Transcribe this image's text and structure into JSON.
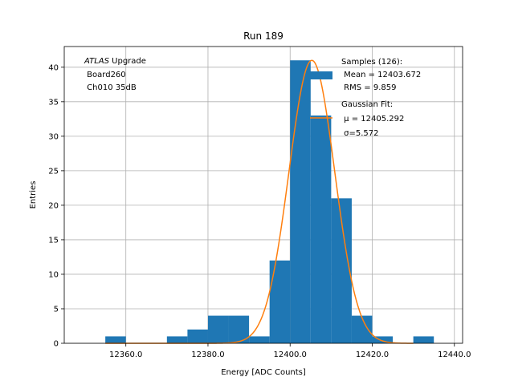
{
  "chart_data": {
    "type": "bar",
    "title": "Run 189",
    "xlabel": "Energy [ADC Counts]",
    "ylabel": "Entries",
    "xlim": [
      12345,
      12442
    ],
    "ylim": [
      0,
      43
    ],
    "grid": true,
    "xticks": [
      12360,
      12380,
      12400,
      12420,
      12440
    ],
    "xtick_labels": [
      "12360.0",
      "12380.0",
      "12400.0",
      "12420.0",
      "12440.0"
    ],
    "yticks": [
      0,
      5,
      10,
      15,
      20,
      25,
      30,
      35,
      40
    ],
    "ytick_labels": [
      "0",
      "5",
      "10",
      "15",
      "20",
      "25",
      "30",
      "35",
      "40"
    ],
    "bin_width": 5,
    "bin_starts": [
      12355,
      12370,
      12375,
      12380,
      12385,
      12390,
      12395,
      12400,
      12405,
      12410,
      12415,
      12420,
      12430
    ],
    "counts": [
      1,
      1,
      2,
      4,
      4,
      1,
      12,
      41,
      33,
      21,
      4,
      1,
      1
    ],
    "bar_color": "#1f77b4",
    "fit": {
      "type": "gaussian",
      "mu": 12405.292,
      "sigma": 5.572,
      "amplitude": 41,
      "color": "#ff7f0e"
    },
    "annotation_lines": [
      "ATLAS",
      " Upgrade",
      " Board260",
      " Ch010 35dB"
    ],
    "legend": {
      "placement": "top-right",
      "entries": [
        {
          "kind": "histogram",
          "lines": [
            "Samples (126):",
            " Mean = 12403.672",
            " RMS = 9.859"
          ]
        },
        {
          "kind": "fit",
          "lines": [
            "Gaussian Fit:",
            " μ = 12405.292",
            " σ=5.572"
          ]
        }
      ]
    }
  }
}
